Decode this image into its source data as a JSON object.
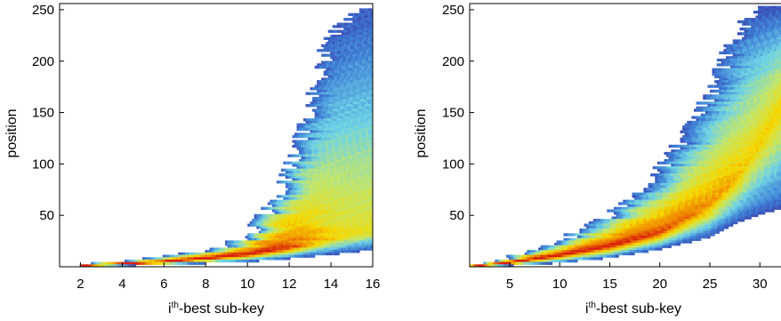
{
  "chart_data": [
    {
      "type": "heatmap",
      "title": "",
      "xlabel": {
        "prefix": "i",
        "sup": "th",
        "suffix": "-best sub-key"
      },
      "ylabel": "position",
      "xlim": [
        1,
        16
      ],
      "ylim": [
        0,
        256
      ],
      "xticks": [
        2,
        4,
        6,
        8,
        10,
        12,
        14,
        16
      ],
      "yticks": [
        50,
        100,
        150,
        200,
        250
      ],
      "ridge": [
        [
          1,
          0
        ],
        [
          2,
          1
        ],
        [
          4,
          3
        ],
        [
          6,
          5
        ],
        [
          8,
          8
        ],
        [
          10,
          12
        ],
        [
          12,
          18
        ],
        [
          13,
          22
        ],
        [
          14,
          26
        ],
        [
          15,
          30
        ],
        [
          16,
          33
        ]
      ],
      "outer_edge": [
        [
          1,
          0
        ],
        [
          4,
          6
        ],
        [
          6,
          10
        ],
        [
          8,
          16
        ],
        [
          9,
          22
        ],
        [
          10,
          30
        ],
        [
          11,
          55
        ],
        [
          12,
          95
        ],
        [
          13,
          160
        ],
        [
          14,
          225
        ],
        [
          15,
          245
        ],
        [
          16,
          252
        ]
      ],
      "inner_edge": [
        [
          1,
          0
        ],
        [
          6,
          3
        ],
        [
          10,
          6
        ],
        [
          12,
          9
        ],
        [
          14,
          13
        ],
        [
          15,
          15
        ],
        [
          16,
          18
        ]
      ],
      "colormap": [
        "#ffffff",
        "#3a2ca0",
        "#3f7fd6",
        "#6fd3e6",
        "#c4e66a",
        "#f5d800",
        "#f08a00",
        "#d8200d"
      ]
    },
    {
      "type": "heatmap",
      "title": "",
      "xlabel": {
        "prefix": "i",
        "sup": "th",
        "suffix": "-best sub-key"
      },
      "ylabel": "position",
      "xlim": [
        1,
        33
      ],
      "ylim": [
        0,
        256
      ],
      "xticks": [
        5,
        10,
        15,
        20,
        25,
        30
      ],
      "yticks": [
        50,
        100,
        150,
        200,
        250
      ],
      "ridge": [
        [
          1,
          0
        ],
        [
          5,
          4
        ],
        [
          10,
          11
        ],
        [
          15,
          20
        ],
        [
          20,
          33
        ],
        [
          25,
          60
        ],
        [
          28,
          90
        ],
        [
          30,
          120
        ],
        [
          33,
          170
        ]
      ],
      "outer_edge": [
        [
          1,
          0
        ],
        [
          5,
          10
        ],
        [
          10,
          25
        ],
        [
          15,
          50
        ],
        [
          20,
          95
        ],
        [
          24,
          150
        ],
        [
          27,
          210
        ],
        [
          29,
          250
        ],
        [
          33,
          256
        ]
      ],
      "inner_edge": [
        [
          1,
          0
        ],
        [
          5,
          2
        ],
        [
          10,
          5
        ],
        [
          15,
          10
        ],
        [
          20,
          18
        ],
        [
          25,
          30
        ],
        [
          28,
          45
        ],
        [
          30,
          52
        ],
        [
          33,
          60
        ]
      ],
      "colormap": [
        "#ffffff",
        "#3a2ca0",
        "#3f7fd6",
        "#6fd3e6",
        "#c4e66a",
        "#f5d800",
        "#f08a00",
        "#d8200d"
      ]
    }
  ]
}
